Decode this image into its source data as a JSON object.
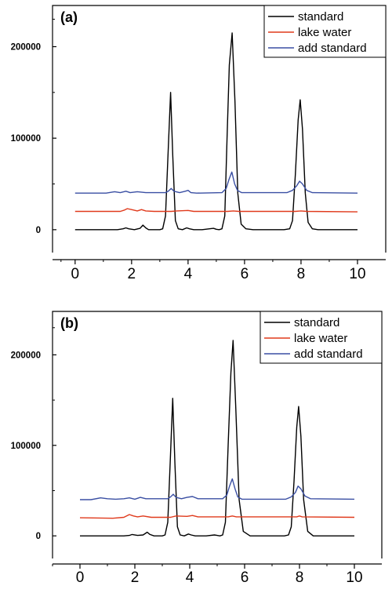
{
  "chart_data": [
    {
      "type": "line",
      "panel_label": "(a)",
      "x_ticks": [
        "0",
        "2",
        "4",
        "6",
        "8",
        "10"
      ],
      "y_ticks": [
        "0",
        "100000",
        "200000"
      ],
      "xlim": [
        -0.8,
        11.0
      ],
      "ylim": [
        -25000,
        245000
      ],
      "legend_position": "top-right",
      "series": [
        {
          "name": "standard",
          "color": "#000000",
          "x": [
            0,
            1.5,
            1.7,
            1.8,
            1.9,
            2.1,
            2.3,
            2.4,
            2.5,
            2.6,
            3.0,
            3.1,
            3.2,
            3.3,
            3.38,
            3.46,
            3.55,
            3.65,
            3.8,
            3.95,
            4.05,
            4.2,
            4.5,
            4.9,
            5.0,
            5.1,
            5.2,
            5.3,
            5.38,
            5.46,
            5.56,
            5.66,
            5.76,
            5.88,
            6.05,
            6.3,
            7.4,
            7.6,
            7.7,
            7.8,
            7.9,
            7.97,
            8.05,
            8.15,
            8.25,
            8.4,
            8.6,
            10.0
          ],
          "y": [
            0,
            0,
            1000,
            2000,
            1000,
            0,
            1500,
            5000,
            2000,
            0,
            0,
            1000,
            15000,
            90000,
            150000,
            80000,
            10000,
            1000,
            0,
            2000,
            1000,
            0,
            0,
            1500,
            500,
            0,
            1000,
            15000,
            100000,
            180000,
            215000,
            140000,
            40000,
            6000,
            1000,
            0,
            0,
            1000,
            10000,
            60000,
            120000,
            142000,
            110000,
            40000,
            8000,
            1000,
            0,
            0
          ]
        },
        {
          "name": "lake water",
          "color": "#e03a1c",
          "x": [
            0,
            1.6,
            1.75,
            1.85,
            2.0,
            2.2,
            2.35,
            2.5,
            2.8,
            3.4,
            3.6,
            4.0,
            4.2,
            5.4,
            5.6,
            5.8,
            7.8,
            8.0,
            8.2,
            10.0
          ],
          "y": [
            20000,
            20000,
            21500,
            23000,
            22000,
            20500,
            22000,
            20500,
            20000,
            20000,
            20500,
            21000,
            20000,
            20000,
            20500,
            20000,
            20000,
            20500,
            20000,
            19500
          ]
        },
        {
          "name": "add standard",
          "color": "#3a4fa3",
          "x": [
            0,
            1.1,
            1.4,
            1.6,
            1.8,
            1.95,
            2.2,
            2.5,
            3.2,
            3.3,
            3.4,
            3.5,
            3.7,
            3.9,
            4.0,
            4.1,
            4.3,
            5.2,
            5.35,
            5.45,
            5.55,
            5.65,
            5.75,
            5.9,
            7.5,
            7.7,
            7.85,
            7.95,
            8.05,
            8.2,
            8.4,
            10.0
          ],
          "y": [
            40000,
            40000,
            41500,
            40500,
            42000,
            40500,
            41500,
            40500,
            40500,
            42000,
            45000,
            42000,
            40500,
            42000,
            43000,
            40500,
            40000,
            40500,
            45000,
            55000,
            63000,
            50000,
            43000,
            40500,
            40500,
            43000,
            48000,
            53000,
            50000,
            43000,
            40500,
            40000
          ]
        }
      ]
    },
    {
      "type": "line",
      "panel_label": "(b)",
      "x_ticks": [
        "0",
        "2",
        "4",
        "6",
        "8",
        "10"
      ],
      "y_ticks": [
        "0",
        "100000",
        "200000"
      ],
      "xlim": [
        -1.0,
        11.0
      ],
      "ylim": [
        -25000,
        248000
      ],
      "legend_position": "top-right",
      "series": [
        {
          "name": "standard",
          "color": "#000000",
          "x": [
            0,
            1.6,
            1.8,
            1.9,
            2.1,
            2.3,
            2.45,
            2.55,
            2.7,
            3.0,
            3.1,
            3.2,
            3.3,
            3.38,
            3.46,
            3.55,
            3.65,
            3.8,
            3.95,
            4.05,
            4.2,
            4.6,
            4.9,
            5.0,
            5.1,
            5.2,
            5.3,
            5.4,
            5.5,
            5.58,
            5.68,
            5.8,
            5.95,
            6.2,
            7.45,
            7.6,
            7.7,
            7.8,
            7.9,
            7.97,
            8.05,
            8.15,
            8.3,
            8.5,
            10.0
          ],
          "y": [
            0,
            0,
            500,
            1500,
            500,
            1000,
            4000,
            1500,
            0,
            0,
            1000,
            15000,
            90000,
            152000,
            80000,
            10000,
            1000,
            0,
            2000,
            1000,
            0,
            0,
            1000,
            500,
            0,
            1000,
            15000,
            100000,
            180000,
            216000,
            140000,
            40000,
            5000,
            0,
            0,
            1000,
            10000,
            60000,
            120000,
            143000,
            110000,
            40000,
            5000,
            0,
            0
          ]
        },
        {
          "name": "lake water",
          "color": "#e03a1c",
          "x": [
            0,
            1.2,
            1.6,
            1.8,
            1.95,
            2.1,
            2.3,
            2.6,
            3.3,
            3.5,
            3.9,
            4.1,
            4.3,
            5.4,
            5.55,
            5.7,
            7.9,
            8.0,
            8.1,
            10.0
          ],
          "y": [
            20000,
            19500,
            20500,
            23500,
            22000,
            21000,
            22000,
            20500,
            20500,
            22000,
            21500,
            22500,
            21000,
            21000,
            22000,
            21000,
            21000,
            22000,
            21000,
            20500
          ]
        },
        {
          "name": "add standard",
          "color": "#3a4fa3",
          "x": [
            0,
            0.4,
            0.75,
            1.0,
            1.3,
            1.6,
            1.8,
            2.0,
            2.2,
            2.4,
            2.8,
            3.2,
            3.3,
            3.4,
            3.5,
            3.7,
            3.9,
            4.1,
            4.3,
            5.2,
            5.35,
            5.45,
            5.55,
            5.65,
            5.75,
            5.9,
            7.5,
            7.7,
            7.85,
            7.95,
            8.05,
            8.2,
            8.4,
            10.0
          ],
          "y": [
            40000,
            40000,
            42000,
            41000,
            40500,
            41000,
            42000,
            40500,
            42500,
            41000,
            41000,
            41000,
            43000,
            46000,
            42500,
            41000,
            42500,
            43500,
            41000,
            41000,
            45000,
            55000,
            63000,
            52000,
            43000,
            40500,
            40500,
            43000,
            48000,
            55000,
            52000,
            44000,
            41000,
            40500
          ]
        }
      ]
    }
  ]
}
